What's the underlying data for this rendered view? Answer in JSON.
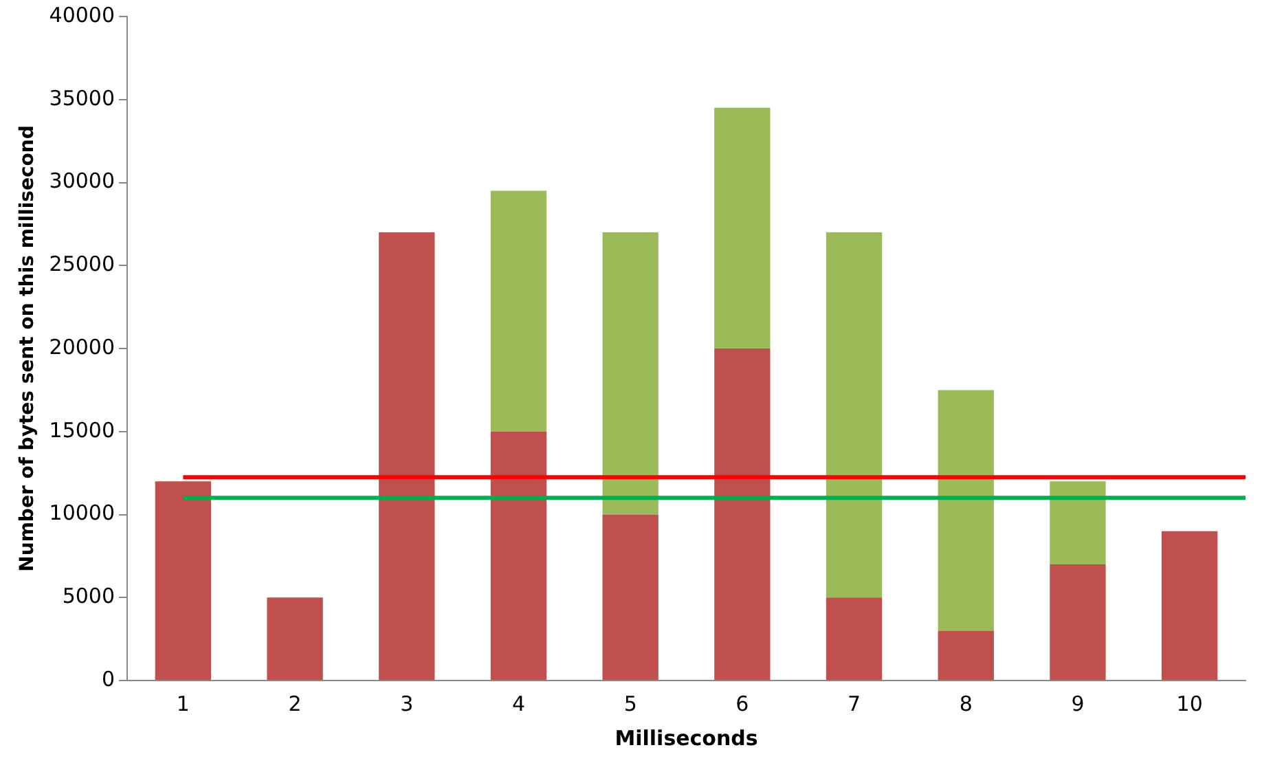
{
  "chart_data": {
    "type": "bar",
    "stacked": true,
    "xlabel": "Milliseconds",
    "ylabel": "Number of bytes sent on this millisecond",
    "categories": [
      "1",
      "2",
      "3",
      "4",
      "5",
      "6",
      "7",
      "8",
      "9",
      "10"
    ],
    "series": [
      {
        "color": "#c0504d",
        "values": [
          12000,
          5000,
          27000,
          15000,
          10000,
          20000,
          5000,
          3000,
          7000,
          9000
        ]
      },
      {
        "color": "#9bbb59",
        "values": [
          null,
          null,
          null,
          14500,
          17000,
          14500,
          22000,
          14500,
          5000,
          null
        ]
      }
    ],
    "ylim": [
      0,
      40000
    ],
    "yticks": [
      0,
      5000,
      10000,
      15000,
      20000,
      25000,
      30000,
      35000,
      40000
    ],
    "ref_lines": [
      {
        "axis": "y",
        "value": 12250,
        "color": "#ff0000",
        "line_style": "solid"
      },
      {
        "axis": "y",
        "value": 11000,
        "color": "#00b050",
        "line_style": "solid"
      }
    ],
    "grid": false,
    "legend": false
  }
}
